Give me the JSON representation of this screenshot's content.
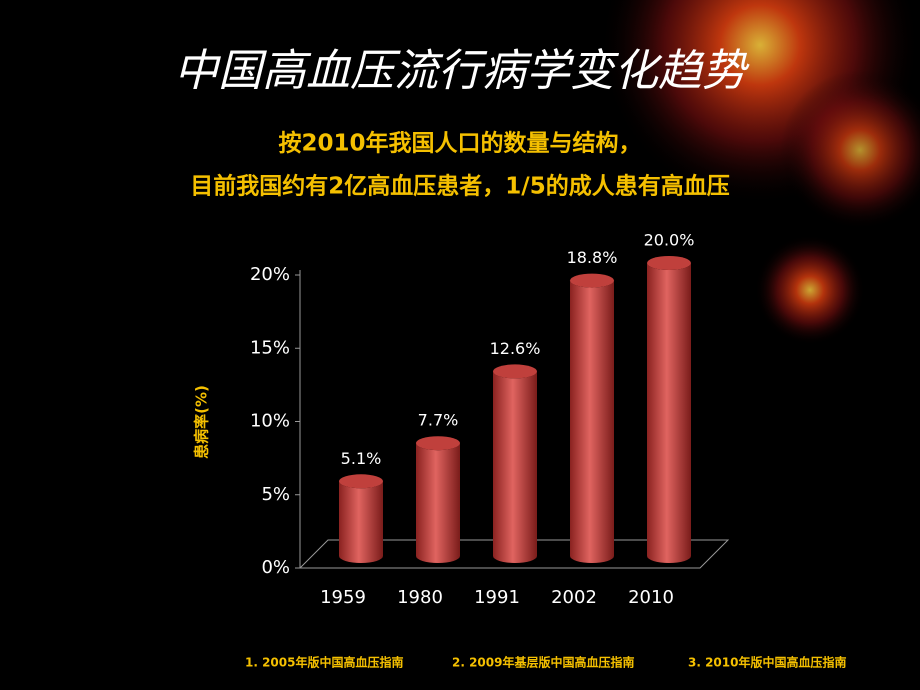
{
  "chart_data": {
    "type": "bar",
    "title": "中国高血压流行病学变化趋势",
    "subtitle": [
      "按2010年我国人口的数量与结构，",
      "目前我国约有2亿高血压患者，1/5的成人患有高血压"
    ],
    "y_label": "患病率(%)",
    "categories": [
      "1959",
      "1980",
      "1991",
      "2002",
      "2010"
    ],
    "values": [
      5.1,
      7.7,
      12.6,
      18.8,
      20.0
    ],
    "value_labels": [
      "5.1%",
      "7.7%",
      "12.6%",
      "18.8%",
      "20.0%"
    ],
    "color": "#c0403c",
    "ylim": [
      0,
      20
    ],
    "yticks": [
      {
        "value": 0,
        "label": "0%"
      },
      {
        "value": 5,
        "label": "5%"
      },
      {
        "value": 10,
        "label": "10%"
      },
      {
        "value": 15,
        "label": "15%"
      },
      {
        "value": 20,
        "label": "20%"
      }
    ],
    "grid": false,
    "footnotes": [
      "1. 2005年版中国高血压指南",
      "2. 2009年基层版中国高血压指南",
      "3. 2010年版中国高血压指南"
    ]
  }
}
